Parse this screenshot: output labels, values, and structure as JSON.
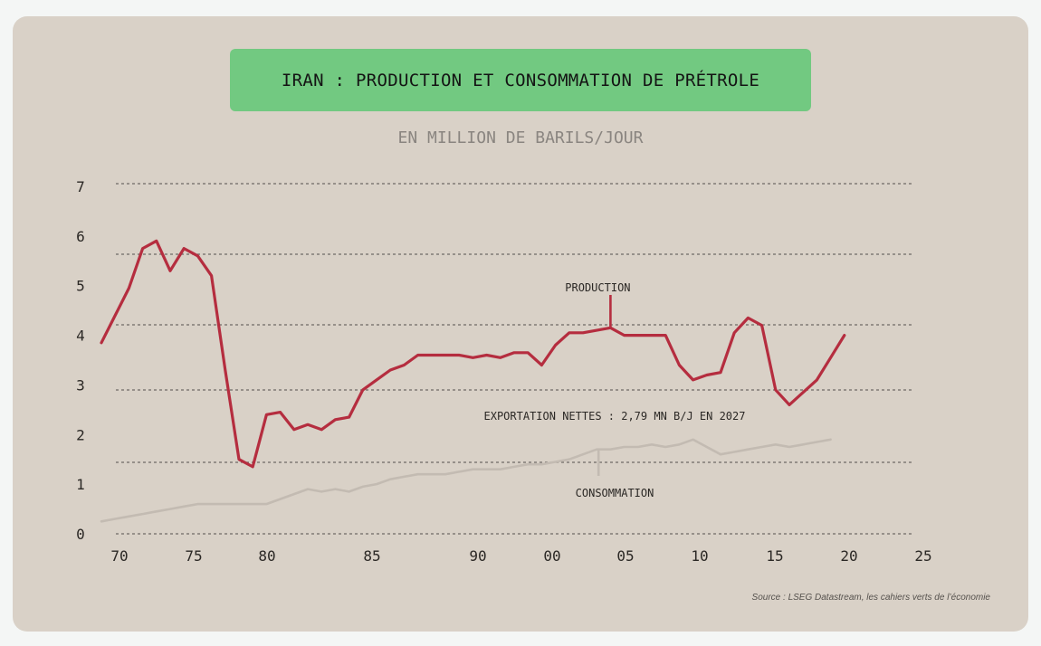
{
  "chart_data": {
    "type": "line",
    "title": "IRAN : PRODUCTION ET CONSOMMATION DE PRÉTROLE",
    "subtitle": "EN MILLION DE BARILS/JOUR",
    "ylim": [
      0,
      7
    ],
    "yticks": [
      "0",
      "1",
      "2",
      "3",
      "4",
      "5",
      "6",
      "7"
    ],
    "xticks": [
      "70",
      "75",
      "80",
      "85",
      "90",
      "00",
      "05",
      "10",
      "15",
      "20",
      "25"
    ],
    "grid": "dotted horizontal",
    "series": [
      {
        "name": "PRODUCTION",
        "color": "#b52d3f",
        "points": [
          [
            0,
            3.85
          ],
          [
            1,
            4.4
          ],
          [
            2,
            4.95
          ],
          [
            3,
            5.75
          ],
          [
            4,
            5.9
          ],
          [
            5,
            5.3
          ],
          [
            6,
            5.75
          ],
          [
            7,
            5.6
          ],
          [
            8,
            5.2
          ],
          [
            9,
            3.3
          ],
          [
            10,
            1.5
          ],
          [
            11,
            1.35
          ],
          [
            12,
            2.4
          ],
          [
            13,
            2.45
          ],
          [
            14,
            2.1
          ],
          [
            15,
            2.2
          ],
          [
            16,
            2.1
          ],
          [
            17,
            2.3
          ],
          [
            18,
            2.35
          ],
          [
            19,
            2.9
          ],
          [
            20,
            3.1
          ],
          [
            21,
            3.3
          ],
          [
            22,
            3.4
          ],
          [
            23,
            3.6
          ],
          [
            24,
            3.6
          ],
          [
            25,
            3.6
          ],
          [
            26,
            3.6
          ],
          [
            27,
            3.55
          ],
          [
            28,
            3.6
          ],
          [
            29,
            3.55
          ],
          [
            30,
            3.65
          ],
          [
            31,
            3.65
          ],
          [
            32,
            3.4
          ],
          [
            33,
            3.8
          ],
          [
            34,
            4.05
          ],
          [
            35,
            4.05
          ],
          [
            36,
            4.1
          ],
          [
            37,
            4.15
          ],
          [
            38,
            4.0
          ],
          [
            39,
            4.0
          ],
          [
            40,
            4.0
          ],
          [
            41,
            4.0
          ],
          [
            42,
            3.4
          ],
          [
            43,
            3.1
          ],
          [
            44,
            3.2
          ],
          [
            45,
            3.25
          ],
          [
            46,
            4.05
          ],
          [
            47,
            4.35
          ],
          [
            48,
            4.2
          ],
          [
            49,
            2.9
          ],
          [
            50,
            2.6
          ],
          [
            51,
            2.85
          ],
          [
            52,
            3.1
          ],
          [
            53,
            3.55
          ],
          [
            54,
            4.0
          ]
        ]
      },
      {
        "name": "CONSOMMATION",
        "color": "#c3bbb2",
        "points": [
          [
            0,
            0.25
          ],
          [
            1,
            0.3
          ],
          [
            2,
            0.35
          ],
          [
            3,
            0.4
          ],
          [
            4,
            0.45
          ],
          [
            5,
            0.5
          ],
          [
            6,
            0.55
          ],
          [
            7,
            0.6
          ],
          [
            8,
            0.6
          ],
          [
            9,
            0.6
          ],
          [
            10,
            0.6
          ],
          [
            11,
            0.6
          ],
          [
            12,
            0.6
          ],
          [
            13,
            0.7
          ],
          [
            14,
            0.8
          ],
          [
            15,
            0.9
          ],
          [
            16,
            0.85
          ],
          [
            17,
            0.9
          ],
          [
            18,
            0.85
          ],
          [
            19,
            0.95
          ],
          [
            20,
            1.0
          ],
          [
            21,
            1.1
          ],
          [
            22,
            1.15
          ],
          [
            23,
            1.2
          ],
          [
            24,
            1.2
          ],
          [
            25,
            1.2
          ],
          [
            26,
            1.25
          ],
          [
            27,
            1.3
          ],
          [
            28,
            1.3
          ],
          [
            29,
            1.3
          ],
          [
            30,
            1.35
          ],
          [
            31,
            1.4
          ],
          [
            32,
            1.4
          ],
          [
            33,
            1.45
          ],
          [
            34,
            1.5
          ],
          [
            35,
            1.6
          ],
          [
            36,
            1.7
          ],
          [
            37,
            1.7
          ],
          [
            38,
            1.75
          ],
          [
            39,
            1.75
          ],
          [
            40,
            1.8
          ],
          [
            41,
            1.75
          ],
          [
            42,
            1.8
          ],
          [
            43,
            1.9
          ],
          [
            44,
            1.75
          ],
          [
            45,
            1.6
          ],
          [
            46,
            1.65
          ],
          [
            47,
            1.7
          ],
          [
            48,
            1.75
          ],
          [
            49,
            1.8
          ],
          [
            50,
            1.75
          ],
          [
            51,
            1.8
          ],
          [
            52,
            1.85
          ],
          [
            53,
            1.9
          ]
        ]
      }
    ],
    "annotations": [
      {
        "name": "PRODUCTION"
      },
      {
        "name": "CONSOMMATION"
      },
      {
        "name": "EXPORTATION NETTES : 2,79 MN B/J EN 2027"
      }
    ]
  },
  "source": "Source : LSEG Datastream, les cahiers verts de l’économie"
}
